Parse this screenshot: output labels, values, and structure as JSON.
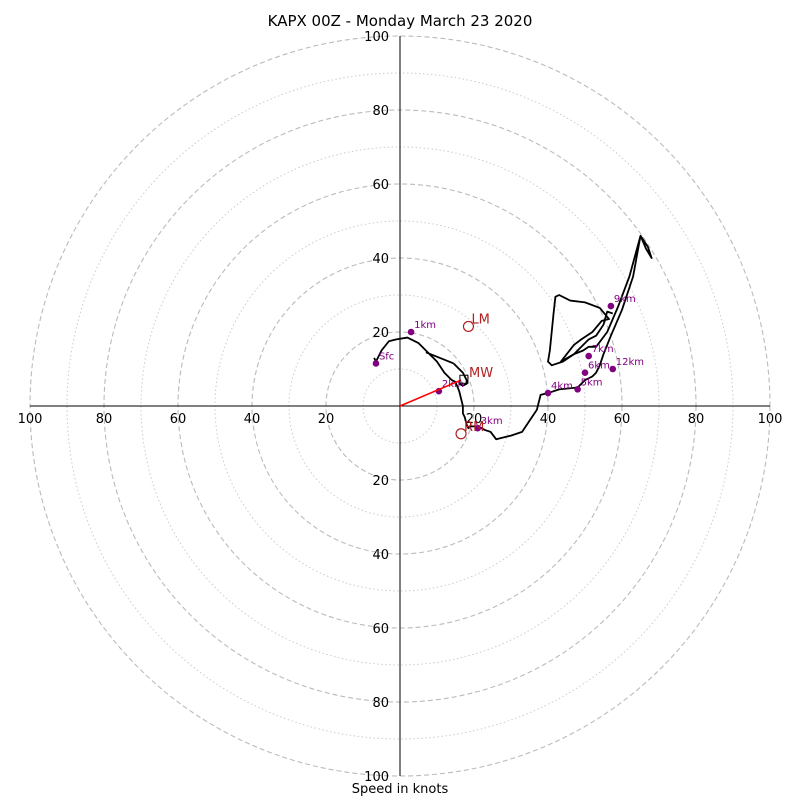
{
  "chart_data": {
    "type": "line",
    "title": "KAPX 00Z - Monday March 23 2020",
    "xlabel": "Speed in knots",
    "ylabel": "",
    "rings": [
      10,
      20,
      30,
      40,
      50,
      60,
      70,
      80,
      90,
      100
    ],
    "labeled_rings": [
      20,
      40,
      60,
      80,
      100
    ],
    "axis_tick_labels": [
      "100",
      "80",
      "60",
      "40",
      "20",
      "20",
      "40",
      "60",
      "80",
      "100"
    ],
    "xlim": [
      -100,
      100
    ],
    "ylim": [
      -100,
      100
    ],
    "grid": true,
    "colors": {
      "hodograph": "#000000",
      "height_markers": "#800080",
      "storm_motion": "#b22222",
      "mean_wind_vector": "#ff0000",
      "ring_major": "#bbbbbb",
      "ring_minor": "#cccccc"
    },
    "series": [
      {
        "name": "",
        "x": [
          -7,
          -6.5,
          -5,
          -3,
          -1,
          2,
          5,
          6,
          7,
          8,
          9,
          10,
          12,
          14,
          15,
          16,
          16.5,
          17,
          17,
          17.5,
          18,
          18.5,
          19,
          20,
          21,
          22,
          23,
          24.5,
          26,
          30,
          33,
          35,
          37,
          38,
          40,
          43,
          48,
          50,
          51,
          52,
          53,
          54,
          55,
          57,
          60,
          63,
          65,
          67,
          68,
          66.5,
          65,
          62,
          59,
          56,
          53,
          51,
          49.5,
          47,
          44,
          41,
          40,
          40.5,
          41,
          41.5,
          42,
          43,
          46,
          50,
          54,
          56.5,
          54.5,
          52,
          49,
          47,
          43.5,
          47,
          51,
          53,
          55,
          56,
          57.5
        ],
        "y": [
          13,
          12,
          15,
          17.5,
          18,
          18.5,
          17,
          16,
          15,
          14,
          13,
          12,
          9,
          7,
          6.5,
          4,
          2,
          0,
          -2,
          -3,
          -5,
          -6,
          -5.5,
          -5.5,
          -5.5,
          -6,
          -6.5,
          -7,
          -9,
          -8,
          -7,
          -4,
          -1,
          3,
          3.5,
          4.5,
          5,
          7,
          7.5,
          8,
          9,
          11,
          14,
          19,
          26,
          35,
          46,
          43,
          40,
          42.5,
          46,
          35,
          27,
          20,
          16,
          16,
          15,
          14,
          12,
          11,
          12,
          15,
          20,
          25,
          29.5,
          30,
          28.5,
          28,
          26.5,
          23.5,
          23,
          20,
          18,
          16.5,
          12,
          14,
          18,
          19,
          22,
          25.5,
          25
        ]
      }
    ],
    "segments": [
      {
        "x": [
          7,
          14.5
        ],
        "y": [
          14.5,
          11.5
        ]
      },
      {
        "x": [
          14.5,
          17,
          18,
          18,
          17,
          16
        ],
        "y": [
          11.5,
          9,
          7,
          6,
          5.5,
          6
        ]
      }
    ],
    "height_labels": [
      {
        "label": "Sfc",
        "x": -6.5,
        "y": 11.5
      },
      {
        "label": "1km",
        "x": 3,
        "y": 20
      },
      {
        "label": "2km",
        "x": 10.5,
        "y": 4
      },
      {
        "label": "3km",
        "x": 21,
        "y": -6
      },
      {
        "label": "4km",
        "x": 40,
        "y": 3.5
      },
      {
        "label": "5km",
        "x": 48,
        "y": 4.5
      },
      {
        "label": "6km",
        "x": 50,
        "y": 9
      },
      {
        "label": "7km",
        "x": 51,
        "y": 13.5
      },
      {
        "label": "9km",
        "x": 57,
        "y": 27
      },
      {
        "label": "12km",
        "x": 57.5,
        "y": 10
      }
    ],
    "storm_motion": [
      {
        "label": "LM",
        "x": 18.5,
        "y": 21.5
      },
      {
        "label": "RM",
        "x": 16.5,
        "y": -7.5
      }
    ],
    "mean_wind": {
      "label": "MW",
      "x": 16.5,
      "y": 7
    },
    "mean_wind_box": {
      "x": 17,
      "y": 7.5
    }
  }
}
